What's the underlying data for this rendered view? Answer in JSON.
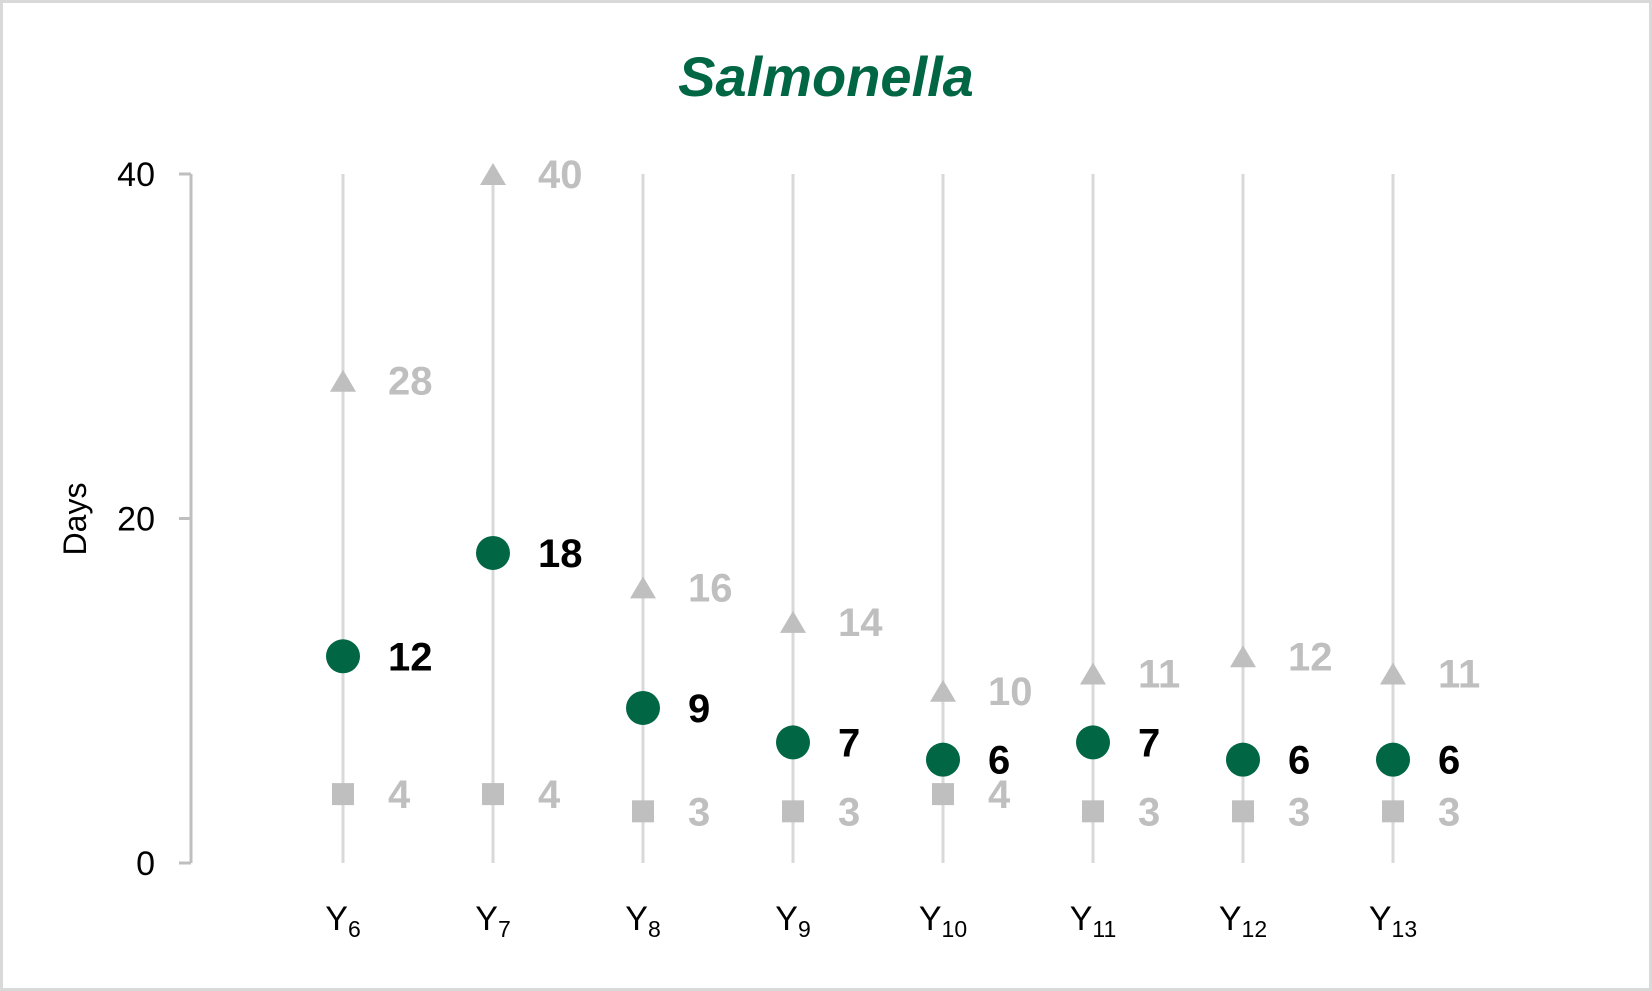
{
  "chart_data": {
    "type": "scatter",
    "title": "Salmonella",
    "xlabel": "",
    "ylabel": "Days",
    "ylim": [
      0,
      40
    ],
    "yticks": [
      "0",
      "20",
      "40"
    ],
    "categories": [
      {
        "base": "Y",
        "sub": "6"
      },
      {
        "base": "Y",
        "sub": "7"
      },
      {
        "base": "Y",
        "sub": "8"
      },
      {
        "base": "Y",
        "sub": "9"
      },
      {
        "base": "Y",
        "sub": "10"
      },
      {
        "base": "Y",
        "sub": "11"
      },
      {
        "base": "Y",
        "sub": "12"
      },
      {
        "base": "Y",
        "sub": "13"
      }
    ],
    "grid": "vertical",
    "legend": "none",
    "series": [
      {
        "marker": "triangle",
        "color": "#BFBFBF",
        "label_color": "#BFBFBF",
        "values": [
          28,
          40,
          16,
          14,
          10,
          11,
          12,
          11
        ]
      },
      {
        "marker": "circle",
        "color": "#006643",
        "label_color": "#000000",
        "values": [
          12,
          18,
          9,
          7,
          6,
          7,
          6,
          6
        ]
      },
      {
        "marker": "square",
        "color": "#BFBFBF",
        "label_color": "#BFBFBF",
        "values": [
          4,
          4,
          3,
          3,
          4,
          3,
          3,
          3
        ]
      }
    ],
    "colors": {
      "title": "#006643",
      "gridline": "#D9D9D9",
      "axis": "#BFBFBF",
      "border": "#D9D9D9"
    }
  }
}
